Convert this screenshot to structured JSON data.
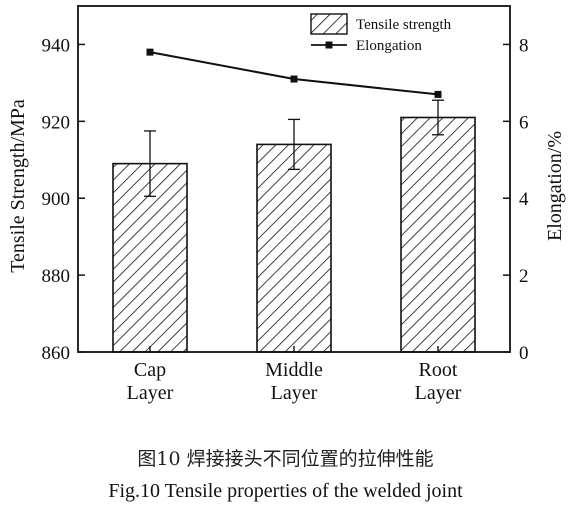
{
  "caption": {
    "chinese": "图10 焊接接头不同位置的拉伸性能",
    "english": "Fig.10  Tensile properties of the welded joint"
  },
  "chart_data": {
    "type": "bar",
    "categories": [
      [
        "Cap",
        "Layer"
      ],
      [
        "Middle",
        "Layer"
      ],
      [
        "Root",
        "Layer"
      ]
    ],
    "ylabel": "Tensile Strength/MPa",
    "y2label": "Elongation/%",
    "ylim": [
      860,
      950
    ],
    "y2lim": [
      0,
      9
    ],
    "yticks": [
      860,
      880,
      900,
      920,
      940
    ],
    "y2ticks": [
      0,
      2,
      4,
      6,
      8
    ],
    "legend_position": "top-right",
    "series": [
      {
        "name": "Tensile strength",
        "type": "bar",
        "axis": "left",
        "pattern": "diagonal-hatch",
        "values": [
          909,
          914,
          921
        ],
        "error": [
          [
            900.5,
            917.5
          ],
          [
            907.5,
            920.5
          ],
          [
            916.5,
            925.5
          ]
        ]
      },
      {
        "name": "Elongation",
        "type": "line",
        "axis": "right",
        "marker": "square",
        "values": [
          7.8,
          7.1,
          6.7
        ]
      }
    ]
  }
}
